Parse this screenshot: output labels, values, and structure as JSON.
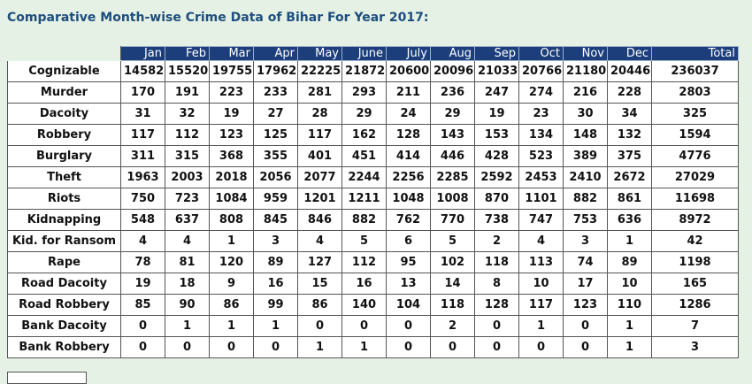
{
  "title": "Comparative Month-wise Crime Data of Bihar For Year 2017:",
  "table": {
    "columns": [
      "Jan",
      "Feb",
      "Mar",
      "Apr",
      "May",
      "June",
      "July",
      "Aug",
      "Sep",
      "Oct",
      "Nov",
      "Dec",
      "Total"
    ],
    "rows": [
      {
        "label": "Cognizable",
        "values": [
          "14582",
          "15520",
          "19755",
          "17962",
          "22225",
          "21872",
          "20600",
          "20096",
          "21033",
          "20766",
          "21180",
          "20446",
          "236037"
        ]
      },
      {
        "label": "Murder",
        "values": [
          "170",
          "191",
          "223",
          "233",
          "281",
          "293",
          "211",
          "236",
          "247",
          "274",
          "216",
          "228",
          "2803"
        ]
      },
      {
        "label": "Dacoity",
        "values": [
          "31",
          "32",
          "19",
          "27",
          "28",
          "29",
          "24",
          "29",
          "19",
          "23",
          "30",
          "34",
          "325"
        ]
      },
      {
        "label": "Robbery",
        "values": [
          "117",
          "112",
          "123",
          "125",
          "117",
          "162",
          "128",
          "143",
          "153",
          "134",
          "148",
          "132",
          "1594"
        ]
      },
      {
        "label": "Burglary",
        "values": [
          "311",
          "315",
          "368",
          "355",
          "401",
          "451",
          "414",
          "446",
          "428",
          "523",
          "389",
          "375",
          "4776"
        ]
      },
      {
        "label": "Theft",
        "values": [
          "1963",
          "2003",
          "2018",
          "2056",
          "2077",
          "2244",
          "2256",
          "2285",
          "2592",
          "2453",
          "2410",
          "2672",
          "27029"
        ]
      },
      {
        "label": "Riots",
        "values": [
          "750",
          "723",
          "1084",
          "959",
          "1201",
          "1211",
          "1048",
          "1008",
          "870",
          "1101",
          "882",
          "861",
          "11698"
        ]
      },
      {
        "label": "Kidnapping",
        "values": [
          "548",
          "637",
          "808",
          "845",
          "846",
          "882",
          "762",
          "770",
          "738",
          "747",
          "753",
          "636",
          "8972"
        ]
      },
      {
        "label": "Kid. for Ransom",
        "values": [
          "4",
          "4",
          "1",
          "3",
          "4",
          "5",
          "6",
          "5",
          "2",
          "4",
          "3",
          "1",
          "42"
        ]
      },
      {
        "label": "Rape",
        "values": [
          "78",
          "81",
          "120",
          "89",
          "127",
          "112",
          "95",
          "102",
          "118",
          "113",
          "74",
          "89",
          "1198"
        ]
      },
      {
        "label": "Road Dacoity",
        "values": [
          "19",
          "18",
          "9",
          "16",
          "15",
          "16",
          "13",
          "14",
          "8",
          "10",
          "17",
          "10",
          "165"
        ]
      },
      {
        "label": "Road Robbery",
        "values": [
          "85",
          "90",
          "86",
          "99",
          "86",
          "140",
          "104",
          "118",
          "128",
          "117",
          "123",
          "110",
          "1286"
        ]
      },
      {
        "label": "Bank Dacoity",
        "values": [
          "0",
          "1",
          "1",
          "1",
          "0",
          "0",
          "0",
          "2",
          "0",
          "1",
          "0",
          "1",
          "7"
        ]
      },
      {
        "label": "Bank Robbery",
        "values": [
          "0",
          "0",
          "0",
          "0",
          "1",
          "1",
          "0",
          "0",
          "0",
          "0",
          "0",
          "1",
          "3"
        ]
      }
    ]
  },
  "colors": {
    "page_background": "#e5f1e5",
    "title_text": "#1d4e7e",
    "header_background": "#1c3f7c",
    "header_text": "#ffffff"
  }
}
